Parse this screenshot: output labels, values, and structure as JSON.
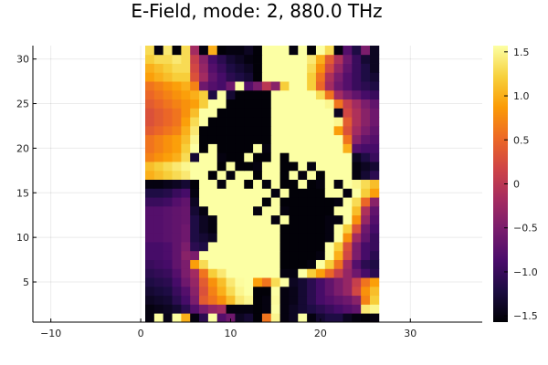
{
  "chart_data": {
    "type": "heatmap",
    "title": "E-Field, mode: 2, 880.0 THz",
    "xlabel": "",
    "ylabel": "",
    "xlim": [
      -12,
      38
    ],
    "ylim": [
      0.5,
      31.5
    ],
    "x_ticks": [
      -10,
      0,
      10,
      20,
      30
    ],
    "y_ticks": [
      5,
      10,
      15,
      20,
      25,
      30
    ],
    "grid": true,
    "grid_cols": 26,
    "grid_rows": 31,
    "x_start": 1,
    "y_start": 1,
    "colorscale": "inferno",
    "colorbar": {
      "range": [
        -1.5708,
        1.5708
      ],
      "ticks": [
        1.5,
        1.0,
        0.5,
        0,
        -0.5,
        -1.0,
        -1.5
      ],
      "tick_labels": [
        "1.5",
        "1.0",
        "0.5",
        "0",
        "−0.5",
        "−1.0",
        "−1.5"
      ],
      "stops": [
        "#000004",
        "#1b0c41",
        "#4a0c6b",
        "#781c6d",
        "#a52c60",
        "#cf4446",
        "#ed6925",
        "#fb9b06",
        "#f7d13d",
        "#fcffa4"
      ]
    },
    "z": [
      [
        -1.5,
        1.56,
        -1.45,
        1.56,
        1.0,
        -1.5,
        -1.1,
        1.57,
        -0.8,
        -0.6,
        -1.4,
        -1.3,
        -1.55,
        0.6,
        1.5,
        -1.5,
        -1.4,
        1.6,
        -1.5,
        -1.3,
        -1.2,
        -1.2,
        -1.4,
        -1.5,
        -1.55,
        -1.5
      ],
      [
        -1.5,
        -1.45,
        -1.4,
        -1.3,
        -1.1,
        -0.8,
        -0.5,
        -0.3,
        -0.2,
        -1.5,
        -1.5,
        -1.5,
        -1.55,
        -1.5,
        1.57,
        -1.5,
        -1.4,
        -1.3,
        -1.2,
        -1.1,
        -1.0,
        -0.9,
        -0.8,
        -0.7,
        1.4,
        1.5
      ],
      [
        -1.4,
        -1.35,
        -1.3,
        -1.1,
        -0.9,
        -0.5,
        0.4,
        0.6,
        0.8,
        1.1,
        1.4,
        1.5,
        -1.55,
        -1.5,
        1.55,
        -1.5,
        -1.45,
        -1.3,
        -1.1,
        -0.9,
        -0.8,
        -0.7,
        -0.6,
        -0.4,
        0.7,
        1.2
      ],
      [
        -1.3,
        -1.25,
        -1.2,
        -1.0,
        -0.8,
        -0.4,
        0.3,
        0.7,
        1.0,
        1.3,
        1.5,
        1.57,
        -1.55,
        -1.55,
        1.57,
        -1.5,
        -1.45,
        -1.3,
        -1.1,
        -0.9,
        -0.7,
        -0.5,
        -0.3,
        0.2,
        0.8,
        1.1
      ],
      [
        -1.2,
        -1.15,
        -1.1,
        -0.9,
        -0.6,
        -0.3,
        0.4,
        0.8,
        1.1,
        1.4,
        1.55,
        1.57,
        0.9,
        0.6,
        1.3,
        1.57,
        -1.4,
        -1.3,
        -1.1,
        -0.9,
        -0.7,
        -0.5,
        -0.3,
        0.1,
        0.6,
        0.9
      ],
      [
        -1.1,
        -1.05,
        -1.0,
        -0.8,
        -0.5,
        -0.2,
        0.6,
        1.2,
        1.4,
        1.57,
        1.57,
        1.57,
        1.57,
        1.57,
        1.57,
        -1.5,
        -1.5,
        1.57,
        1.2,
        0.9,
        0.5,
        0.1,
        -0.3,
        -0.6,
        -0.9,
        -1.1
      ],
      [
        -1.0,
        -0.95,
        -0.9,
        -0.7,
        -0.5,
        0.9,
        1.3,
        1.57,
        1.57,
        1.57,
        1.57,
        1.57,
        1.57,
        1.57,
        1.57,
        -1.55,
        -1.55,
        -1.55,
        -1.5,
        1.57,
        1.2,
        0.6,
        -0.2,
        -0.8,
        -1.1,
        -1.2
      ],
      [
        -0.9,
        -0.9,
        -0.85,
        -0.7,
        -0.4,
        -0.5,
        1.57,
        1.57,
        1.57,
        1.57,
        1.57,
        1.57,
        1.57,
        1.57,
        1.57,
        -1.55,
        -1.55,
        -1.55,
        -1.55,
        -1.5,
        1.57,
        1.0,
        0.2,
        -0.5,
        -0.9,
        -1.1
      ],
      [
        -0.9,
        -0.9,
        -0.85,
        -0.7,
        -0.5,
        -1.1,
        -1.2,
        1.57,
        1.57,
        1.57,
        1.57,
        1.57,
        1.57,
        1.57,
        1.57,
        -1.55,
        -1.55,
        -1.55,
        -1.55,
        -1.55,
        1.57,
        1.2,
        0.3,
        -0.5,
        -0.9,
        -1.0
      ],
      [
        -0.8,
        -0.8,
        -0.75,
        -0.7,
        -0.6,
        -1.2,
        -1.3,
        -1.4,
        1.57,
        1.57,
        1.57,
        1.57,
        1.57,
        1.57,
        1.57,
        -1.55,
        -1.55,
        -1.55,
        -1.55,
        -1.55,
        -1.5,
        1.57,
        0.8,
        -0.2,
        -0.7,
        -1.0
      ],
      [
        -0.8,
        -0.8,
        -0.75,
        -0.7,
        -0.6,
        -1.2,
        -1.4,
        -1.5,
        1.57,
        1.57,
        1.57,
        1.57,
        1.57,
        1.57,
        1.57,
        -1.55,
        -1.55,
        -1.55,
        -1.55,
        -1.55,
        -1.5,
        1.57,
        1.2,
        0.3,
        -0.6,
        -0.9
      ],
      [
        -0.8,
        -0.8,
        -0.75,
        -0.7,
        -0.65,
        -1.2,
        -1.4,
        -1.5,
        1.57,
        1.57,
        1.57,
        1.57,
        1.57,
        1.57,
        -1.5,
        1.57,
        -1.55,
        -1.55,
        -1.55,
        -1.55,
        -1.5,
        -1.5,
        1.57,
        0.8,
        -0.3,
        -0.8
      ],
      [
        -0.8,
        -0.8,
        -0.75,
        -0.7,
        -0.65,
        -1.3,
        -1.5,
        1.57,
        1.57,
        1.57,
        1.57,
        1.57,
        -1.5,
        1.57,
        1.57,
        -1.5,
        -1.55,
        -1.55,
        -1.55,
        -1.55,
        -1.55,
        1.57,
        1.57,
        1.1,
        -0.1,
        -0.7
      ],
      [
        -1.0,
        -1.0,
        -0.95,
        -0.8,
        -0.7,
        -1.4,
        1.57,
        1.57,
        1.57,
        1.57,
        1.57,
        1.57,
        1.57,
        -1.55,
        1.57,
        -1.55,
        -1.55,
        -1.55,
        -1.55,
        -1.55,
        -1.55,
        -1.5,
        1.57,
        1.3,
        0.5,
        -0.4
      ],
      [
        -1.2,
        -1.2,
        -1.15,
        -1.0,
        -0.9,
        -1.5,
        1.57,
        1.57,
        1.57,
        1.57,
        1.57,
        1.57,
        1.57,
        1.57,
        -1.5,
        1.57,
        -1.55,
        -1.55,
        -1.55,
        -1.55,
        1.57,
        1.57,
        -1.5,
        1.57,
        1.2,
        0.9
      ],
      [
        -1.5,
        -1.5,
        -1.45,
        -1.4,
        -1.3,
        -1.55,
        1.57,
        1.57,
        -1.5,
        1.57,
        1.57,
        -1.55,
        1.57,
        -1.5,
        1.57,
        -1.55,
        -1.55,
        1.57,
        -1.55,
        -1.5,
        1.57,
        -1.5,
        1.57,
        1.5,
        1.3,
        1.1
      ],
      [
        1.0,
        1.1,
        1.2,
        1.3,
        1.4,
        1.57,
        1.57,
        -1.55,
        1.57,
        -1.5,
        1.57,
        1.57,
        -1.55,
        1.57,
        1.57,
        -1.55,
        1.57,
        -1.5,
        1.57,
        -1.55,
        1.57,
        1.57,
        1.57,
        -1.5,
        -1.3,
        -1.1
      ],
      [
        1.1,
        1.2,
        1.3,
        1.4,
        1.5,
        1.57,
        1.57,
        1.57,
        -1.55,
        1.57,
        -1.55,
        -1.55,
        -1.5,
        1.57,
        1.57,
        -1.55,
        -1.55,
        1.57,
        -1.5,
        1.57,
        1.57,
        1.57,
        1.57,
        -1.5,
        -1.4,
        -1.3
      ],
      [
        0.7,
        0.8,
        0.9,
        1.0,
        1.3,
        -1.3,
        1.57,
        1.57,
        -1.5,
        -1.55,
        -1.55,
        1.57,
        -1.55,
        -1.55,
        1.57,
        -1.55,
        1.57,
        1.57,
        1.57,
        1.57,
        1.57,
        1.57,
        1.57,
        -1.4,
        -1.2,
        -1.0
      ],
      [
        0.6,
        0.7,
        0.8,
        0.9,
        1.2,
        1.57,
        -1.55,
        1.57,
        -1.55,
        -1.55,
        -1.55,
        -1.55,
        1.57,
        -1.5,
        1.57,
        1.57,
        1.57,
        1.57,
        1.57,
        1.57,
        1.57,
        1.57,
        1.0,
        -0.8,
        -0.9,
        -0.9
      ],
      [
        0.6,
        0.7,
        0.8,
        0.9,
        1.1,
        1.5,
        -1.55,
        -1.55,
        -1.55,
        -1.55,
        -1.55,
        -1.55,
        -1.55,
        -1.55,
        1.57,
        1.57,
        1.57,
        1.57,
        1.57,
        1.57,
        1.57,
        1.57,
        0.6,
        -0.4,
        -0.7,
        -0.8
      ],
      [
        0.4,
        0.5,
        0.6,
        0.7,
        1.0,
        1.4,
        -1.55,
        -1.55,
        -1.55,
        -1.55,
        -1.55,
        -1.55,
        -1.55,
        -1.55,
        1.57,
        1.57,
        1.57,
        1.57,
        1.57,
        1.57,
        1.57,
        0.9,
        0.3,
        -0.2,
        -0.5,
        -0.7
      ],
      [
        0.3,
        0.4,
        0.5,
        0.6,
        0.9,
        1.3,
        1.57,
        -1.55,
        -1.55,
        -1.55,
        -1.55,
        -1.55,
        -1.55,
        -1.55,
        1.57,
        1.57,
        1.57,
        1.57,
        1.57,
        1.57,
        1.57,
        1.5,
        0.4,
        -0.1,
        -0.4,
        -0.6
      ],
      [
        0.3,
        0.4,
        0.5,
        0.6,
        0.8,
        1.1,
        1.57,
        1.57,
        -1.55,
        -1.55,
        -1.55,
        -1.55,
        -1.55,
        -1.55,
        1.57,
        1.57,
        1.57,
        1.57,
        1.57,
        1.57,
        1.57,
        -1.4,
        0.2,
        -0.1,
        -0.4,
        -0.6
      ],
      [
        0.4,
        0.5,
        0.6,
        0.7,
        0.8,
        0.9,
        1.2,
        1.57,
        1.57,
        -1.55,
        -1.55,
        -1.55,
        -1.55,
        -1.55,
        1.57,
        1.57,
        1.57,
        1.57,
        1.57,
        1.57,
        1.5,
        0.6,
        0.1,
        -0.2,
        -0.5,
        -0.7
      ],
      [
        0.5,
        0.6,
        0.7,
        0.8,
        0.9,
        1.0,
        1.2,
        -1.2,
        1.57,
        -1.3,
        -1.55,
        -1.55,
        -1.55,
        -1.55,
        1.57,
        1.57,
        1.57,
        1.57,
        1.57,
        1.3,
        0.6,
        -0.2,
        -0.5,
        -0.7,
        -0.9,
        -1.0
      ],
      [
        0.6,
        0.7,
        0.8,
        0.9,
        1.0,
        0.7,
        -0.6,
        -0.8,
        -0.9,
        -0.6,
        1.57,
        -0.8,
        -0.5,
        0.0,
        -0.4,
        1.2,
        1.57,
        1.57,
        1.2,
        0.5,
        -0.2,
        -0.6,
        -0.8,
        -1.0,
        -1.1,
        -1.2
      ],
      [
        0.9,
        1.0,
        1.1,
        1.2,
        1.2,
        0.3,
        -0.2,
        -0.7,
        -0.9,
        -1.1,
        -1.2,
        -1.3,
        -1.55,
        1.57,
        1.57,
        1.57,
        1.57,
        1.57,
        1.2,
        0.6,
        -0.1,
        -0.5,
        -0.8,
        -1.0,
        -1.2,
        -1.3
      ],
      [
        1.0,
        1.1,
        1.2,
        1.3,
        1.3,
        0.2,
        -0.3,
        -0.8,
        -1.0,
        -1.2,
        -1.3,
        -1.4,
        -1.55,
        1.57,
        1.57,
        1.57,
        1.57,
        1.57,
        1.3,
        0.8,
        0.2,
        -0.3,
        -0.7,
        -1.0,
        -1.2,
        -1.4
      ],
      [
        1.2,
        1.3,
        1.3,
        1.4,
        1.3,
        0.1,
        -0.4,
        -0.9,
        -1.1,
        -1.3,
        -1.4,
        -1.5,
        -1.55,
        1.57,
        1.57,
        1.57,
        1.57,
        1.57,
        1.4,
        1.0,
        0.4,
        -0.1,
        -0.6,
        -1.0,
        -1.3,
        -1.4
      ],
      [
        1.3,
        -1.5,
        1.4,
        -1.55,
        1.3,
        -0.2,
        -1.5,
        1.0,
        -1.55,
        -1.5,
        -1.5,
        -1.4,
        -1.55,
        1.57,
        1.57,
        1.57,
        -1.5,
        1.57,
        -1.55,
        1.57,
        1.3,
        -1.5,
        -0.8,
        -1.2,
        -0.5,
        -1.4
      ]
    ]
  }
}
